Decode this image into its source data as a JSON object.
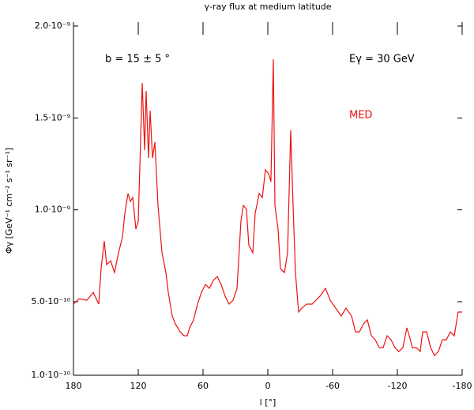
{
  "chart_data": {
    "type": "line",
    "title": "γ-ray flux at medium latitude",
    "xlabel": "l [°]",
    "ylabel": "Φγ [GeV⁻¹ cm⁻² s⁻¹ sr⁻¹]",
    "annotations": [
      "b = 15 ± 5 °",
      "Eγ = 30 GeV"
    ],
    "xlim": [
      180,
      -180
    ],
    "xticks": [
      180,
      120,
      60,
      0,
      -60,
      -120,
      -180
    ],
    "ylim": [
      1e-10,
      2e-09
    ],
    "yticks": [
      {
        "value": 1e-10,
        "label": "1.0·10⁻¹⁰"
      },
      {
        "value": 5e-10,
        "label": "5.0·10⁻¹⁰"
      },
      {
        "value": 1e-09,
        "label": "1.0·10⁻⁹"
      },
      {
        "value": 1.5e-09,
        "label": "1.5·10⁻⁹"
      },
      {
        "value": 2e-09,
        "label": "2.0·10⁻⁹"
      }
    ],
    "x": [
      180,
      174.9,
      167.6,
      161.7,
      156.6,
      154.4,
      151.5,
      149.3,
      145.6,
      142.0,
      138.3,
      134.6,
      132.4,
      129.5,
      127.3,
      125.1,
      122.2,
      120.0,
      116.3,
      114.1,
      112.7,
      110.5,
      109.0,
      106.8,
      104.6,
      101.7,
      98.0,
      94.4,
      92.2,
      88.5,
      85.6,
      81.2,
      77.6,
      74.6,
      72.4,
      68.8,
      65.1,
      61.5,
      57.8,
      54.1,
      50.5,
      46.8,
      43.2,
      39.5,
      35.9,
      32.2,
      28.5,
      24.9,
      22.7,
      19.8,
      17.6,
      13.9,
      11.7,
      8.0,
      5.1,
      2.2,
      -0.7,
      -2.9,
      -5.1,
      -6.6,
      -9.5,
      -11.7,
      -15.4,
      -18.3,
      -21.2,
      -23.4,
      -25.6,
      -28.5,
      -31.5,
      -35.9,
      -41.0,
      -48.3,
      -53.4,
      -57.8,
      -62.9,
      -68.0,
      -72.4,
      -77.6,
      -81.2,
      -84.9,
      -88.5,
      -92.2,
      -95.9,
      -99.5,
      -103.2,
      -106.8,
      -110.5,
      -114.1,
      -117.8,
      -121.4,
      -125.1,
      -128.8,
      -131.0,
      -133.9,
      -137.6,
      -141.2,
      -143.4,
      -147.1,
      -150.8,
      -154.4,
      -158.0,
      -161.7,
      -165.4,
      -169.0,
      -172.7,
      -176.3,
      -180
    ],
    "series": [
      {
        "name": "MED",
        "color": "#ee1111",
        "values": [
          4.87e-10,
          5.17e-10,
          5.08e-10,
          5.51e-10,
          4.87e-10,
          6.8e-10,
          8.31e-10,
          7.02e-10,
          7.23e-10,
          6.59e-10,
          7.66e-10,
          8.52e-10,
          9.81e-10,
          1.089e-09,
          1.046e-09,
          1.067e-09,
          8.95e-10,
          9.38e-10,
          1.69e-09,
          1.325e-09,
          1.647e-09,
          1.282e-09,
          1.54e-09,
          1.282e-09,
          1.368e-09,
          1.024e-09,
          7.66e-10,
          6.59e-10,
          5.51e-10,
          4.22e-10,
          3.79e-10,
          3.36e-10,
          3.15e-10,
          3.15e-10,
          3.58e-10,
          4.01e-10,
          4.87e-10,
          5.51e-10,
          5.94e-10,
          5.73e-10,
          6.16e-10,
          6.37e-10,
          5.94e-10,
          5.3e-10,
          4.87e-10,
          5.08e-10,
          5.73e-10,
          9.38e-10,
          1.024e-09,
          1.003e-09,
          8.09e-10,
          7.66e-10,
          9.81e-10,
          1.089e-09,
          1.067e-09,
          1.218e-09,
          1.196e-09,
          1.153e-09,
          1.819e-09,
          1.024e-09,
          8.95e-10,
          6.8e-10,
          6.59e-10,
          7.66e-10,
          1.433e-09,
          1.024e-09,
          6.59e-10,
          4.44e-10,
          4.65e-10,
          4.87e-10,
          4.87e-10,
          5.3e-10,
          5.73e-10,
          5.08e-10,
          4.65e-10,
          4.22e-10,
          4.65e-10,
          4.22e-10,
          3.36e-10,
          3.36e-10,
          3.79e-10,
          4.01e-10,
          3.15e-10,
          2.93e-10,
          2.5e-10,
          2.5e-10,
          3.15e-10,
          2.93e-10,
          2.5e-10,
          2.29e-10,
          2.5e-10,
          3.58e-10,
          3.15e-10,
          2.5e-10,
          2.5e-10,
          2.29e-10,
          3.36e-10,
          3.36e-10,
          2.5e-10,
          2.07e-10,
          2.29e-10,
          2.93e-10,
          2.93e-10,
          3.36e-10,
          3.15e-10,
          4.44e-10,
          4.44e-10
        ]
      }
    ]
  }
}
